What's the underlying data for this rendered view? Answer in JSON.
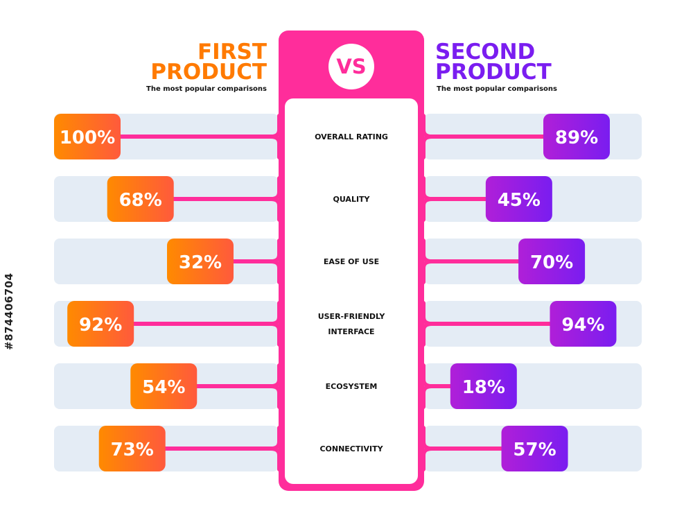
{
  "header": {
    "left": {
      "title_line1": "FIRST",
      "title_line2": "PRODUCT",
      "subtitle": "The most popular comparisons",
      "color": "#ff7a00"
    },
    "right": {
      "title_line1": "SECOND",
      "title_line2": "PRODUCT",
      "subtitle": "The most popular comparisons",
      "color": "#7a1df0"
    },
    "vs_label": "VS"
  },
  "colors": {
    "pink": "#ff2d9b",
    "orange": "#ff7a00",
    "purple": "#7a1df0",
    "row_bg": "#e4ecf5",
    "text_dark": "#111111"
  },
  "watermark": {
    "id": "#874406704"
  },
  "chart_data": {
    "type": "bar",
    "categories": [
      "OVERALL RATING",
      "QUALITY",
      "EASE OF USE",
      "USER-FRIENDLY INTERFACE",
      "ECOSYSTEM",
      "CONNECTIVITY"
    ],
    "category_lines": [
      [
        "OVERALL RATING"
      ],
      [
        "QUALITY"
      ],
      [
        "EASE OF USE"
      ],
      [
        "USER-FRIENDLY",
        "INTERFACE"
      ],
      [
        "ECOSYSTEM"
      ],
      [
        "CONNECTIVITY"
      ]
    ],
    "series": [
      {
        "name": "FIRST PRODUCT",
        "values": [
          100,
          68,
          32,
          92,
          54,
          73
        ],
        "labels": [
          "100%",
          "68%",
          "32%",
          "92%",
          "54%",
          "73%"
        ]
      },
      {
        "name": "SECOND PRODUCT",
        "values": [
          89,
          45,
          70,
          94,
          18,
          57
        ],
        "labels": [
          "89%",
          "45%",
          "70%",
          "94%",
          "18%",
          "57%"
        ]
      }
    ],
    "ylim": [
      0,
      100
    ]
  }
}
